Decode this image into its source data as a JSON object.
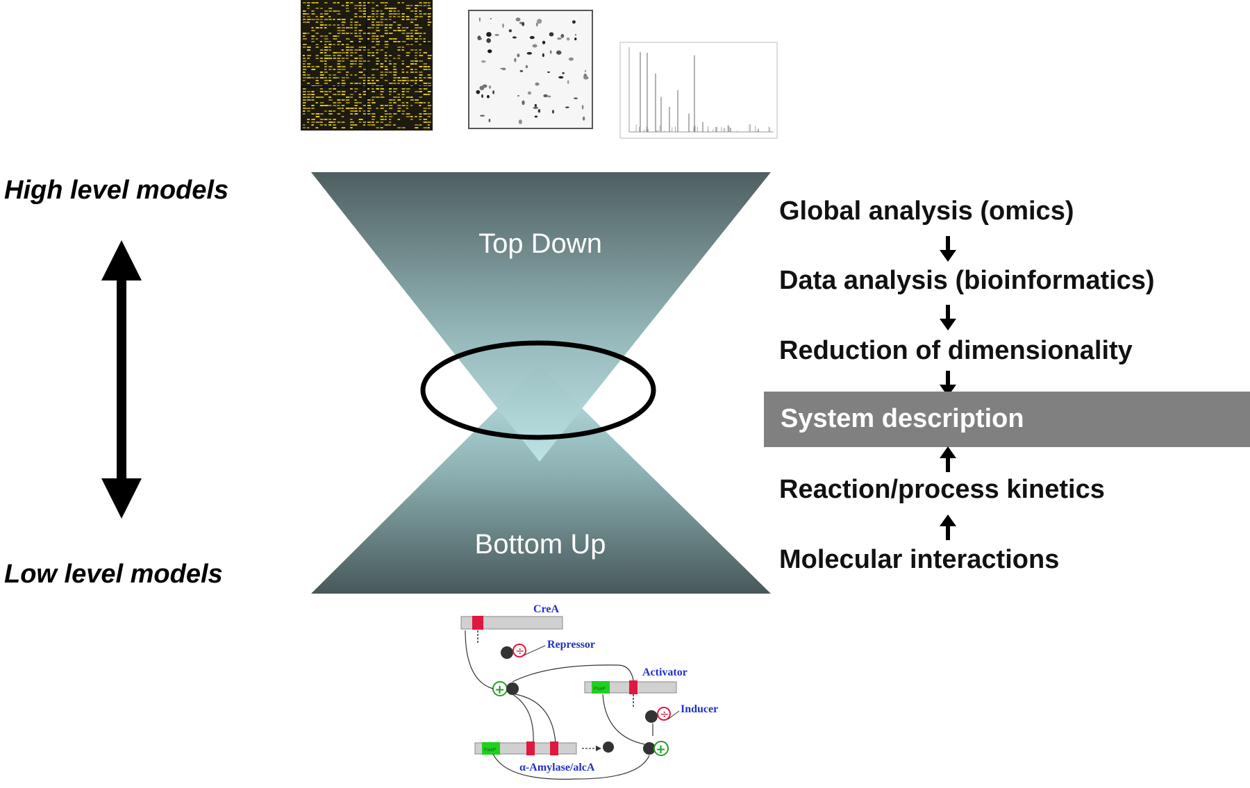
{
  "left_labels": {
    "high": "High level models",
    "low": "Low level models"
  },
  "hourglass": {
    "top_label": "Top Down",
    "bottom_label": "Bottom Up"
  },
  "steps_top": [
    "Global analysis (omics)",
    "Data analysis (bioinformatics)",
    "Reduction of dimensionality"
  ],
  "system_description": "System description",
  "steps_bottom": [
    "Reaction/process kinetics",
    "Molecular interactions"
  ],
  "network": {
    "crea": "CreA",
    "repressor": "Repressor",
    "activator": "Activator",
    "inducer": "Inducer",
    "amylase": "α-Amylase/alcA",
    "box_text": "PaaP"
  },
  "colors": {
    "hourglass_dark": "#47585a",
    "hourglass_light": "#b4dee0",
    "system_box": "#808080",
    "network_label": "#2030c8",
    "binding_site": "#e01840",
    "promoter": "#20d020"
  }
}
